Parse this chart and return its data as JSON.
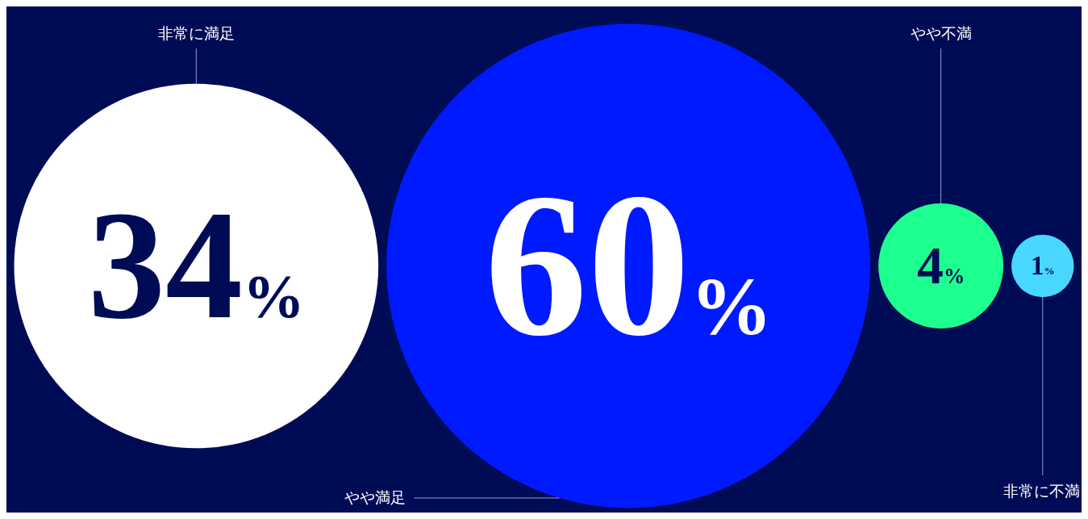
{
  "chart_data": {
    "type": "other",
    "categories": [
      "非常に満足",
      "やや満足",
      "やや不満",
      "非常に不満"
    ],
    "values": [
      34,
      60,
      4,
      1
    ],
    "value_labels": [
      "34%",
      "60%",
      "4%",
      "1%"
    ],
    "colors": [
      "#ffffff",
      "#001aff",
      "#1dff8f",
      "#48d8ff"
    ]
  }
}
